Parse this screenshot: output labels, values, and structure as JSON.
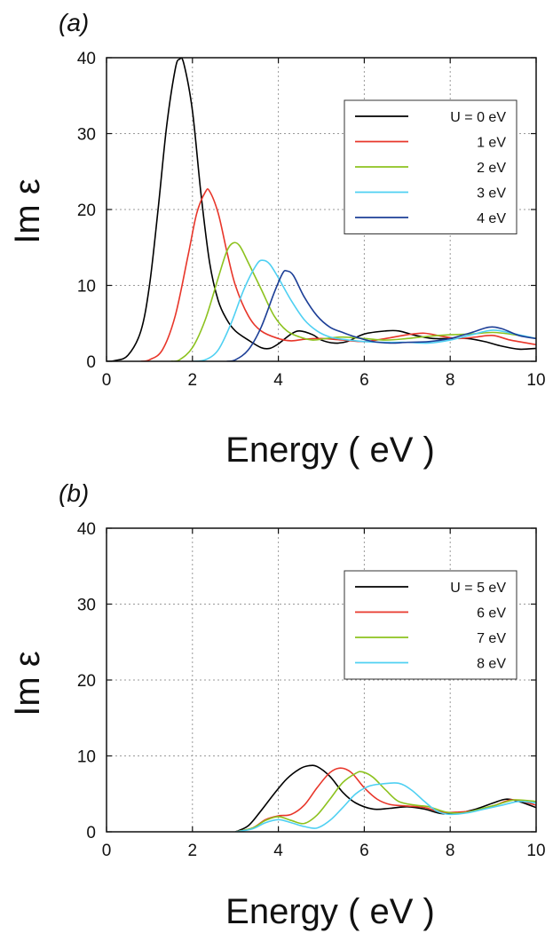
{
  "chart_data": [
    {
      "type": "line",
      "panel": "(a)",
      "xlabel": "Energy ( eV )",
      "ylabel": "Im ε",
      "xlim": [
        0,
        10
      ],
      "ylim": [
        0,
        40
      ],
      "xticks": [
        0,
        2,
        4,
        6,
        8,
        10
      ],
      "yticks": [
        0,
        10,
        20,
        30,
        40
      ],
      "grid": true,
      "legend_position": "top-right",
      "series": [
        {
          "name": "U = 0 eV",
          "color": "#000000",
          "points": [
            [
              0,
              0
            ],
            [
              0.2,
              0.1
            ],
            [
              0.5,
              0.8
            ],
            [
              0.8,
              4
            ],
            [
              1.0,
              10
            ],
            [
              1.2,
              20
            ],
            [
              1.4,
              31
            ],
            [
              1.6,
              38.5
            ],
            [
              1.7,
              39.8
            ],
            [
              1.8,
              39.2
            ],
            [
              2.0,
              33
            ],
            [
              2.2,
              22
            ],
            [
              2.4,
              13
            ],
            [
              2.6,
              8
            ],
            [
              2.8,
              5.5
            ],
            [
              3.0,
              4
            ],
            [
              3.3,
              2.8
            ],
            [
              3.6,
              1.8
            ],
            [
              3.8,
              1.7
            ],
            [
              4.0,
              2.3
            ],
            [
              4.3,
              3.6
            ],
            [
              4.5,
              4.0
            ],
            [
              4.8,
              3.5
            ],
            [
              5.0,
              2.8
            ],
            [
              5.3,
              2.4
            ],
            [
              5.6,
              2.6
            ],
            [
              6.0,
              3.6
            ],
            [
              6.5,
              4.0
            ],
            [
              6.8,
              4.0
            ],
            [
              7.2,
              3.4
            ],
            [
              7.6,
              3.0
            ],
            [
              8.0,
              3.0
            ],
            [
              8.4,
              3.0
            ],
            [
              8.8,
              2.6
            ],
            [
              9.2,
              2.0
            ],
            [
              9.6,
              1.6
            ],
            [
              10,
              1.7
            ]
          ]
        },
        {
          "name": "1 eV",
          "color": "#e8362a",
          "points": [
            [
              0.8,
              0
            ],
            [
              1.0,
              0.2
            ],
            [
              1.3,
              1.5
            ],
            [
              1.6,
              6
            ],
            [
              1.9,
              14
            ],
            [
              2.1,
              19.5
            ],
            [
              2.3,
              22.3
            ],
            [
              2.4,
              22.4
            ],
            [
              2.6,
              19.5
            ],
            [
              2.8,
              14.5
            ],
            [
              3.0,
              10
            ],
            [
              3.3,
              6
            ],
            [
              3.6,
              4
            ],
            [
              4.0,
              3.0
            ],
            [
              4.3,
              2.7
            ],
            [
              4.6,
              2.9
            ],
            [
              5.0,
              3.0
            ],
            [
              5.5,
              2.8
            ],
            [
              6.0,
              2.6
            ],
            [
              6.5,
              3.0
            ],
            [
              7.0,
              3.5
            ],
            [
              7.4,
              3.7
            ],
            [
              7.8,
              3.3
            ],
            [
              8.2,
              3.0
            ],
            [
              8.6,
              3.2
            ],
            [
              9.0,
              3.4
            ],
            [
              9.4,
              2.8
            ],
            [
              10,
              2.2
            ]
          ]
        },
        {
          "name": "2 eV",
          "color": "#8dc21f",
          "points": [
            [
              1.5,
              0
            ],
            [
              1.7,
              0.2
            ],
            [
              2.0,
              1.8
            ],
            [
              2.3,
              5.5
            ],
            [
              2.6,
              11
            ],
            [
              2.8,
              14.5
            ],
            [
              2.95,
              15.6
            ],
            [
              3.1,
              15.2
            ],
            [
              3.3,
              13
            ],
            [
              3.6,
              9.5
            ],
            [
              3.9,
              6
            ],
            [
              4.2,
              4
            ],
            [
              4.5,
              3.2
            ],
            [
              4.8,
              2.8
            ],
            [
              5.1,
              3.0
            ],
            [
              5.5,
              3.2
            ],
            [
              6.0,
              3.0
            ],
            [
              6.5,
              2.8
            ],
            [
              7.0,
              3.0
            ],
            [
              7.5,
              3.3
            ],
            [
              8.0,
              3.5
            ],
            [
              8.5,
              3.6
            ],
            [
              9.0,
              3.8
            ],
            [
              9.5,
              3.5
            ],
            [
              10,
              3.0
            ]
          ]
        },
        {
          "name": "3 eV",
          "color": "#4fd0f2",
          "points": [
            [
              2.0,
              0
            ],
            [
              2.3,
              0.2
            ],
            [
              2.6,
              1.5
            ],
            [
              2.9,
              5
            ],
            [
              3.2,
              9.5
            ],
            [
              3.5,
              12.8
            ],
            [
              3.65,
              13.3
            ],
            [
              3.8,
              12.8
            ],
            [
              4.0,
              11
            ],
            [
              4.3,
              8
            ],
            [
              4.6,
              5.5
            ],
            [
              4.9,
              4
            ],
            [
              5.2,
              3.2
            ],
            [
              5.5,
              2.9
            ],
            [
              6.0,
              2.6
            ],
            [
              6.5,
              2.5
            ],
            [
              7.0,
              2.5
            ],
            [
              7.5,
              2.4
            ],
            [
              8.0,
              2.8
            ],
            [
              8.5,
              3.5
            ],
            [
              9.0,
              4.1
            ],
            [
              9.5,
              3.6
            ],
            [
              10,
              3.0
            ]
          ]
        },
        {
          "name": "4 eV",
          "color": "#1d3f97",
          "points": [
            [
              2.8,
              0
            ],
            [
              3.0,
              0.2
            ],
            [
              3.3,
              1.5
            ],
            [
              3.6,
              4.5
            ],
            [
              3.9,
              9
            ],
            [
              4.1,
              11.6
            ],
            [
              4.2,
              11.9
            ],
            [
              4.35,
              11.3
            ],
            [
              4.6,
              8.5
            ],
            [
              4.9,
              6
            ],
            [
              5.2,
              4.5
            ],
            [
              5.5,
              3.8
            ],
            [
              5.8,
              3.2
            ],
            [
              6.2,
              2.6
            ],
            [
              6.6,
              2.4
            ],
            [
              7.0,
              2.5
            ],
            [
              7.5,
              2.6
            ],
            [
              8.0,
              3.0
            ],
            [
              8.5,
              3.8
            ],
            [
              8.9,
              4.5
            ],
            [
              9.2,
              4.3
            ],
            [
              9.6,
              3.4
            ],
            [
              10,
              3.0
            ]
          ]
        }
      ]
    },
    {
      "type": "line",
      "panel": "(b)",
      "xlabel": "Energy ( eV )",
      "ylabel": "Im ε",
      "xlim": [
        0,
        10
      ],
      "ylim": [
        0,
        40
      ],
      "xticks": [
        0,
        2,
        4,
        6,
        8,
        10
      ],
      "yticks": [
        0,
        10,
        20,
        30,
        40
      ],
      "grid": true,
      "legend_position": "top-right",
      "series": [
        {
          "name": "U = 5 eV",
          "color": "#000000",
          "points": [
            [
              3.0,
              0
            ],
            [
              3.3,
              0.8
            ],
            [
              3.6,
              2.8
            ],
            [
              3.9,
              5
            ],
            [
              4.2,
              7
            ],
            [
              4.5,
              8.3
            ],
            [
              4.7,
              8.7
            ],
            [
              4.9,
              8.6
            ],
            [
              5.2,
              7.3
            ],
            [
              5.5,
              5.2
            ],
            [
              5.8,
              3.8
            ],
            [
              6.2,
              3.0
            ],
            [
              6.6,
              3.1
            ],
            [
              7.0,
              3.3
            ],
            [
              7.4,
              3.0
            ],
            [
              7.8,
              2.4
            ],
            [
              8.2,
              2.5
            ],
            [
              8.6,
              3.0
            ],
            [
              9.0,
              3.8
            ],
            [
              9.3,
              4.3
            ],
            [
              9.6,
              4.0
            ],
            [
              10,
              3.2
            ]
          ]
        },
        {
          "name": "6 eV",
          "color": "#e8362a",
          "points": [
            [
              3.0,
              0
            ],
            [
              3.4,
              0.5
            ],
            [
              3.7,
              1.6
            ],
            [
              4.0,
              2.1
            ],
            [
              4.3,
              2.3
            ],
            [
              4.6,
              3.5
            ],
            [
              4.9,
              5.8
            ],
            [
              5.2,
              7.8
            ],
            [
              5.45,
              8.4
            ],
            [
              5.7,
              7.8
            ],
            [
              6.0,
              5.8
            ],
            [
              6.3,
              4.3
            ],
            [
              6.6,
              3.6
            ],
            [
              7.0,
              3.4
            ],
            [
              7.4,
              3.2
            ],
            [
              7.8,
              2.6
            ],
            [
              8.2,
              2.6
            ],
            [
              8.6,
              2.8
            ],
            [
              9.0,
              3.4
            ],
            [
              9.4,
              4.2
            ],
            [
              9.7,
              4.0
            ],
            [
              10,
              3.5
            ]
          ]
        },
        {
          "name": "7 eV",
          "color": "#8dc21f",
          "points": [
            [
              3.0,
              0
            ],
            [
              3.4,
              0.5
            ],
            [
              3.7,
              1.5
            ],
            [
              4.0,
              2.0
            ],
            [
              4.3,
              1.5
            ],
            [
              4.6,
              1.1
            ],
            [
              4.9,
              2.2
            ],
            [
              5.2,
              4.3
            ],
            [
              5.5,
              6.5
            ],
            [
              5.8,
              7.7
            ],
            [
              5.95,
              7.9
            ],
            [
              6.2,
              7.2
            ],
            [
              6.5,
              5.5
            ],
            [
              6.8,
              4.0
            ],
            [
              7.2,
              3.5
            ],
            [
              7.5,
              3.3
            ],
            [
              7.9,
              2.6
            ],
            [
              8.3,
              2.5
            ],
            [
              8.7,
              3.0
            ],
            [
              9.1,
              3.6
            ],
            [
              9.5,
              4.2
            ],
            [
              10,
              4.0
            ]
          ]
        },
        {
          "name": "8 eV",
          "color": "#4fd0f2",
          "points": [
            [
              3.0,
              0
            ],
            [
              3.4,
              0.4
            ],
            [
              3.7,
              1.2
            ],
            [
              4.0,
              1.6
            ],
            [
              4.3,
              1.2
            ],
            [
              4.6,
              0.7
            ],
            [
              4.9,
              0.5
            ],
            [
              5.2,
              1.5
            ],
            [
              5.5,
              3.2
            ],
            [
              5.8,
              5.0
            ],
            [
              6.1,
              6.0
            ],
            [
              6.4,
              6.3
            ],
            [
              6.8,
              6.4
            ],
            [
              7.1,
              5.5
            ],
            [
              7.4,
              4.0
            ],
            [
              7.7,
              2.7
            ],
            [
              8.0,
              2.3
            ],
            [
              8.4,
              2.5
            ],
            [
              8.8,
              3.0
            ],
            [
              9.2,
              3.5
            ],
            [
              9.6,
              4.0
            ],
            [
              10,
              3.8
            ]
          ]
        }
      ]
    }
  ]
}
